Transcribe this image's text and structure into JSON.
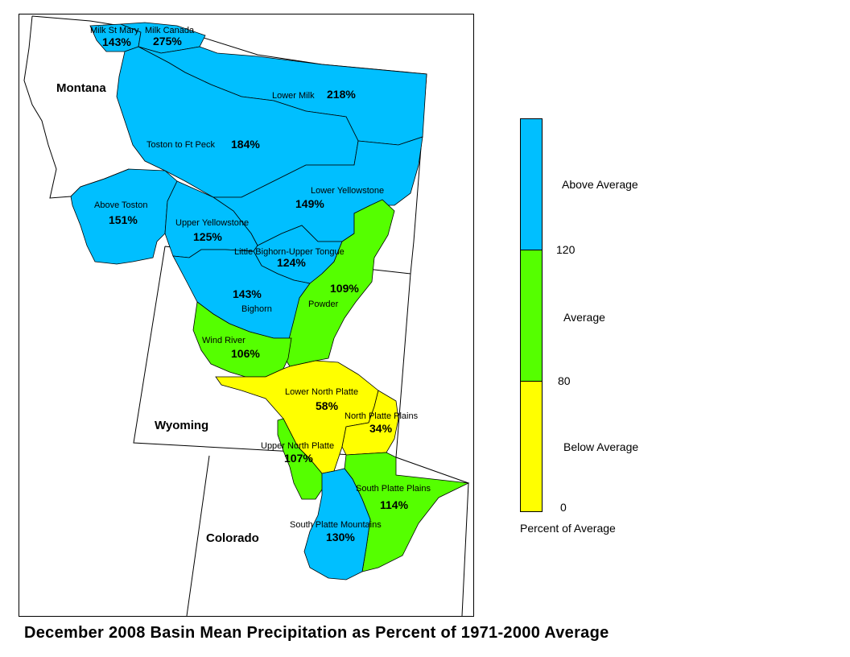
{
  "title": "December 2008 Basin Mean Precipitation as Percent of 1971-2000 Average",
  "colors": {
    "above": "#00bfff",
    "average": "#55ff00",
    "below": "#ffff00"
  },
  "states": [
    "Montana",
    "Wyoming",
    "Colorado"
  ],
  "basins": [
    {
      "name": "Milk St Mary",
      "value": "143%",
      "category": "above"
    },
    {
      "name": "Milk Canada",
      "value": "275%",
      "category": "above"
    },
    {
      "name": "Lower Milk",
      "value": "218%",
      "category": "above"
    },
    {
      "name": "Toston to Ft Peck",
      "value": "184%",
      "category": "above"
    },
    {
      "name": "Above Toston",
      "value": "151%",
      "category": "above"
    },
    {
      "name": "Lower Yellowstone",
      "value": "149%",
      "category": "above"
    },
    {
      "name": "Upper Yellowstone",
      "value": "125%",
      "category": "above"
    },
    {
      "name": "Little Bighorn-Upper Tongue",
      "value": "124%",
      "category": "above"
    },
    {
      "name": "Bighorn",
      "value": "143%",
      "category": "above"
    },
    {
      "name": "Powder",
      "value": "109%",
      "category": "average"
    },
    {
      "name": "Wind River",
      "value": "106%",
      "category": "average"
    },
    {
      "name": "Lower North Platte",
      "value": "58%",
      "category": "below"
    },
    {
      "name": "North Platte Plains",
      "value": "34%",
      "category": "below"
    },
    {
      "name": "Upper North Platte",
      "value": "107%",
      "category": "average"
    },
    {
      "name": "South Platte Plains",
      "value": "114%",
      "category": "average"
    },
    {
      "name": "South Platte Mountains",
      "value": "130%",
      "category": "above"
    }
  ],
  "legend": {
    "categories": [
      {
        "label": "Above Average",
        "category": "above"
      },
      {
        "label": "Average",
        "category": "average"
      },
      {
        "label": "Below Average",
        "category": "below"
      }
    ],
    "ticks": [
      "120",
      "80",
      "0"
    ],
    "caption": "Percent of Average"
  }
}
